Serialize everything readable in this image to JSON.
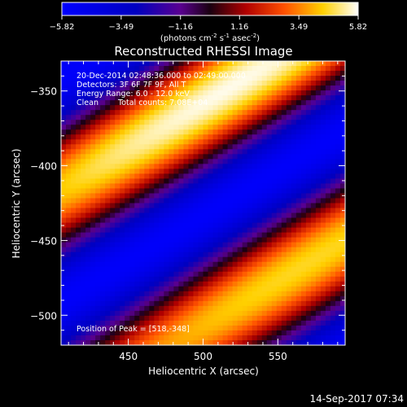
{
  "chart_data": {
    "type": "heatmap",
    "title": "Reconstructed RHESSI Image",
    "xlabel": "Heliocentric X (arcsec)",
    "ylabel": "Heliocentric Y (arcsec)",
    "xlim": [
      405,
      595
    ],
    "ylim": [
      -520,
      -330
    ],
    "x_ticks": [
      450,
      500,
      550
    ],
    "y_ticks": [
      -350,
      -400,
      -450,
      -500
    ],
    "colorbar": {
      "min": -5.82,
      "max": 5.82,
      "ticks": [
        "-5.82",
        "-3.49",
        "-1.16",
        "1.16",
        "3.49",
        "5.82"
      ],
      "label_main": "(photons cm",
      "label_exp1": "-2",
      "label_mid": " s",
      "label_exp2": "-1",
      "label_end": " asec",
      "label_exp3": "-2",
      "label_close": ")"
    },
    "annotations": {
      "line1": "20-Dec-2014 02:48:36.000 to 02:49:00.000",
      "line2": "Detectors: 3F 6F 7F 9F, All T",
      "line3": "Energy Range: 6.0 - 12.0 keV",
      "line4_left": "Clean",
      "line4_right": "Total counts: 7.08E+04",
      "peak": "Position of Peak = [518,-348]"
    },
    "pattern": {
      "description_values": "diagonal fringes",
      "stripe_slope": 0.6,
      "peak_position": [
        518,
        -348
      ]
    },
    "timestamp": "14-Sep-2017 07:34"
  }
}
